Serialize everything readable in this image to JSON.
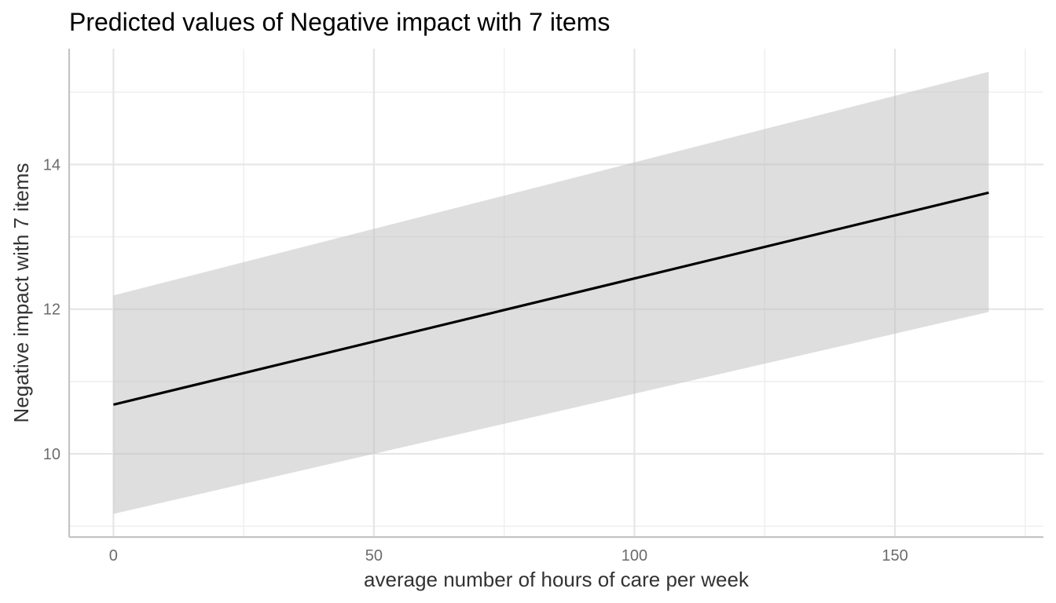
{
  "chart_data": {
    "type": "line",
    "title": "Predicted values of Negative impact with 7 items",
    "xlabel": "average number of hours of care per week",
    "ylabel": "Negative impact with 7 items",
    "xlim": [
      -8.5,
      178.5
    ],
    "ylim": [
      8.85,
      15.6
    ],
    "x_ticks": [
      0,
      50,
      100,
      150
    ],
    "x_minor_ticks": [
      25,
      75,
      125,
      175
    ],
    "y_ticks": [
      10,
      12,
      14
    ],
    "y_minor_ticks": [
      9,
      11,
      13,
      15
    ],
    "grid": true,
    "series": [
      {
        "x": [
          0,
          168
        ],
        "y": [
          10.68,
          13.61
        ],
        "ci_low": [
          9.17,
          11.96
        ],
        "ci_high": [
          12.19,
          15.28
        ]
      }
    ],
    "colors": {
      "line": "#000000",
      "band": "#d9d9d9"
    }
  }
}
